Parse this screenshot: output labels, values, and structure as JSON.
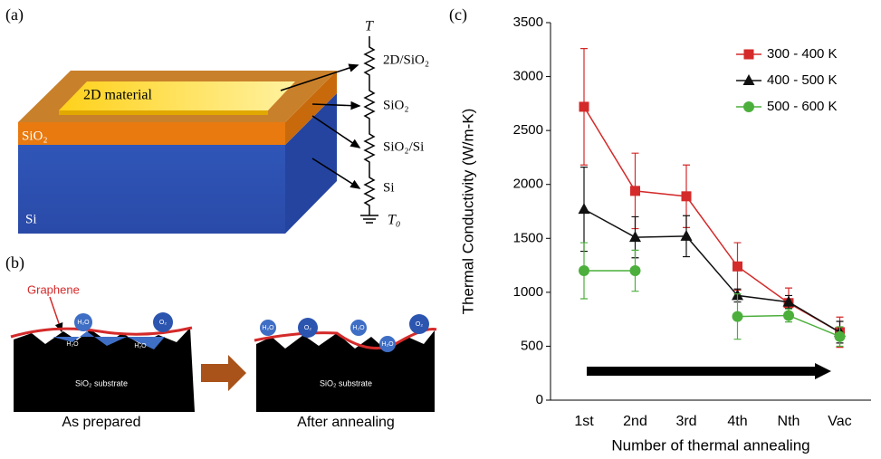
{
  "panel_a": {
    "label": "(a)",
    "material": "2D material",
    "oxide": "SiO₂",
    "substrate": "Si",
    "top_temp": "T",
    "r1": "2D/SiO₂",
    "r2": "SiO₂",
    "r3": "SiO₂/Si",
    "r4": "Si",
    "bottom_temp": "T₀"
  },
  "panel_b": {
    "label": "(b)",
    "graphene": "Graphene",
    "water": "H₂O",
    "oxygen": "O₂",
    "substrate": "SiO₂ substrate",
    "before": "As prepared",
    "after": "After annealing"
  },
  "chart_data": {
    "type": "line",
    "panel_label": "(c)",
    "y_label": "Thermal Conductivity (W/m-K)",
    "x_label": "Number of thermal annealing",
    "categories": [
      "1st",
      "2nd",
      "3rd",
      "4th",
      "Nth",
      "Vac"
    ],
    "ylim": [
      0,
      3500
    ],
    "yticks": [
      0,
      500,
      1000,
      1500,
      2000,
      2500,
      3000,
      3500
    ],
    "legend": "upper right",
    "series": [
      {
        "name": "300 - 400 K",
        "color": "#d42a2a",
        "marker": "square",
        "values": [
          2720,
          1940,
          1890,
          1240,
          900,
          630
        ],
        "errors": [
          540,
          350,
          290,
          220,
          140,
          140
        ]
      },
      {
        "name": "400 - 500 K",
        "color": "#111111",
        "marker": "triangle",
        "values": [
          1770,
          1510,
          1520,
          970,
          910,
          630
        ],
        "errors": [
          390,
          190,
          190,
          60,
          60,
          100
        ]
      },
      {
        "name": "500 - 600 K",
        "color": "#4caf3c",
        "marker": "circle",
        "values": [
          1200,
          1200,
          null,
          775,
          785,
          590
        ],
        "errors": [
          260,
          190,
          null,
          210,
          60,
          90
        ]
      }
    ]
  }
}
